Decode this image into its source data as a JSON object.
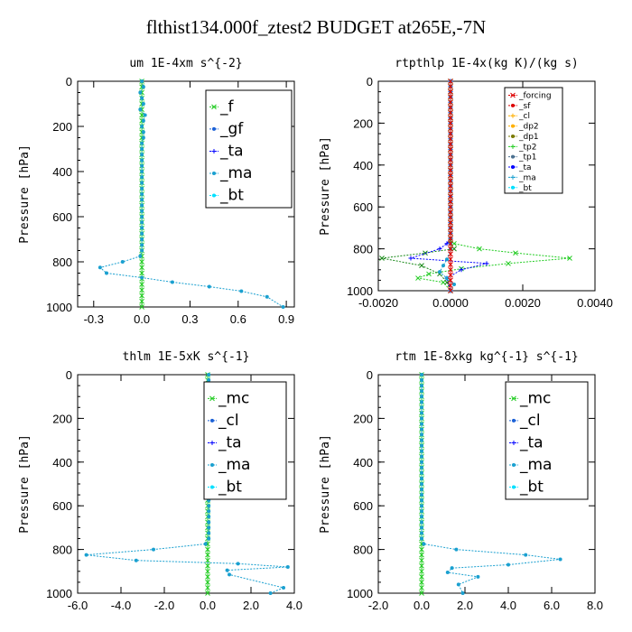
{
  "figure_title": "flthist134.000f_ztest2  BUDGET at265E,-7N",
  "colors": {
    "green": "#22cc22",
    "blue_dark": "#1a60d6",
    "blue": "#0000ff",
    "cyan_mid": "#1aa0d0",
    "cyan": "#00e0ff",
    "red": "#dd0000",
    "orange": "#ffb000",
    "olive": "#7a7a00",
    "dark_green": "#1a8a1a",
    "steel": "#4a7090"
  },
  "chart_data": [
    {
      "type": "line",
      "title": "um   1E-4xm s^{-2}",
      "ylabel": "Pressure [hPa]",
      "xlim": [
        -0.4,
        0.95
      ],
      "ylim": [
        1000,
        0
      ],
      "xticks": [
        -0.3,
        0.0,
        0.3,
        0.6,
        0.9
      ],
      "xtick_labels": [
        "-0.3",
        "0.0",
        "0.3",
        "0.6",
        "0.9"
      ],
      "yticks": [
        0,
        200,
        400,
        600,
        800,
        1000
      ],
      "ytick_labels": [
        "0",
        "200",
        "400",
        "600",
        "800",
        "1000"
      ],
      "legend_style": "big",
      "legend": [
        "_f",
        "_gf",
        "_ta",
        "_ma",
        "_bt"
      ],
      "series": [
        {
          "name": "_f",
          "color": "green",
          "marker": "x",
          "x": [
            0,
            0,
            0,
            0,
            0,
            0,
            0,
            0,
            0,
            0,
            0,
            0,
            0,
            0,
            0,
            0,
            0,
            0,
            0,
            0,
            0,
            0,
            0,
            0,
            0,
            0,
            0,
            0,
            0,
            0,
            0,
            0,
            0,
            0,
            0,
            0,
            0,
            0,
            0,
            0,
            0
          ],
          "y": [
            0,
            25,
            50,
            75,
            100,
            125,
            150,
            175,
            200,
            225,
            250,
            275,
            300,
            325,
            350,
            375,
            400,
            425,
            450,
            475,
            500,
            525,
            550,
            575,
            600,
            625,
            650,
            675,
            700,
            725,
            750,
            775,
            800,
            825,
            850,
            875,
            900,
            925,
            950,
            975,
            1000
          ]
        },
        {
          "name": "_bt",
          "color": "cyan_mid",
          "marker": "dot",
          "x": [
            0.0,
            0.01,
            -0.01,
            0.0,
            0.01,
            -0.01,
            0.02,
            0.01,
            0.0,
            0.01,
            0.01,
            0.0,
            0.0,
            0.0,
            0.0,
            0.0,
            0.0,
            0.0,
            0.0,
            0.0,
            0.0,
            0.0,
            0.0,
            0.0,
            0.0,
            0.0,
            0.0,
            0.0,
            0.0,
            0.0,
            0.0,
            -0.01,
            -0.12,
            -0.26,
            -0.22,
            0.0,
            0.19,
            0.42,
            0.62,
            0.78,
            0.88
          ],
          "y": [
            0,
            25,
            50,
            75,
            100,
            125,
            150,
            175,
            200,
            225,
            250,
            275,
            300,
            325,
            350,
            375,
            400,
            425,
            450,
            475,
            500,
            525,
            550,
            575,
            600,
            625,
            650,
            675,
            700,
            725,
            750,
            775,
            800,
            825,
            850,
            870,
            890,
            910,
            930,
            955,
            1000
          ]
        }
      ]
    },
    {
      "type": "line",
      "title": "rtpthlp   1E-4x(kg K)/(kg s)",
      "ylabel": "Pressure [hPa]",
      "xlim": [
        -0.002,
        0.004
      ],
      "ylim": [
        1000,
        0
      ],
      "xticks": [
        -0.002,
        0.0,
        0.002,
        0.004
      ],
      "xtick_labels": [
        "-0.0020",
        "0.0000",
        "0.0020",
        "0.0040"
      ],
      "yticks": [
        0,
        200,
        400,
        600,
        800,
        1000
      ],
      "ytick_labels": [
        "0",
        "200",
        "400",
        "600",
        "800",
        "1000"
      ],
      "legend_style": "small",
      "legend": [
        "_forcing",
        "_sf",
        "_cl",
        "_dp2",
        "_dp1",
        "_tp2",
        "_tp1",
        "_ta",
        "_ma",
        "_bt"
      ],
      "series": [
        {
          "name": "_tp2",
          "color": "green",
          "marker": "x",
          "x": [
            0,
            0,
            0,
            0,
            0,
            0,
            0,
            0,
            0,
            0,
            0,
            0,
            0,
            0,
            0,
            0,
            0,
            0,
            0,
            0,
            0,
            0,
            0,
            0,
            0,
            0,
            0,
            0,
            0,
            0,
            0,
            0,
            0.0001,
            0.0008,
            0.0018,
            0.0033,
            0.0016,
            0.0003,
            -0.0006,
            -0.0009,
            -0.0002,
            0.0
          ],
          "y": [
            0,
            25,
            50,
            75,
            100,
            125,
            150,
            175,
            200,
            225,
            250,
            275,
            300,
            325,
            350,
            375,
            400,
            425,
            450,
            475,
            500,
            525,
            550,
            575,
            600,
            625,
            650,
            675,
            700,
            725,
            750,
            760,
            775,
            800,
            820,
            845,
            870,
            895,
            920,
            940,
            960,
            1000
          ]
        },
        {
          "name": "_dp1",
          "color": "dark_green",
          "marker": "x",
          "x": [
            0,
            0,
            0,
            0,
            0,
            0,
            0,
            0,
            0,
            0,
            0,
            0,
            0,
            0,
            0,
            0,
            0,
            0,
            0,
            0,
            0,
            0,
            0,
            0,
            0,
            0,
            0,
            0,
            0,
            0,
            0,
            0,
            0.0001,
            -0.0007,
            -0.0019,
            -0.0008,
            -0.0003,
            -0.0001,
            0.0
          ],
          "y": [
            0,
            25,
            50,
            75,
            100,
            125,
            150,
            175,
            200,
            225,
            250,
            275,
            300,
            325,
            350,
            375,
            400,
            425,
            450,
            475,
            500,
            525,
            550,
            575,
            600,
            625,
            650,
            675,
            700,
            725,
            750,
            775,
            800,
            820,
            845,
            880,
            920,
            960,
            1000
          ]
        },
        {
          "name": "_ta",
          "color": "blue",
          "marker": "plus",
          "x": [
            0,
            0,
            0,
            0,
            0,
            0,
            0,
            0,
            0,
            0,
            0,
            0,
            0,
            0,
            0,
            0,
            0,
            0,
            0,
            0,
            0,
            0,
            0,
            0,
            0,
            0,
            0,
            0,
            0,
            0,
            0,
            -0.0001,
            -0.0003,
            -0.0011,
            0.001,
            0.0003,
            -0.0001,
            0.0
          ],
          "y": [
            0,
            25,
            50,
            75,
            100,
            125,
            150,
            175,
            200,
            225,
            250,
            275,
            300,
            325,
            350,
            375,
            400,
            425,
            450,
            475,
            500,
            525,
            550,
            575,
            600,
            625,
            650,
            675,
            700,
            725,
            750,
            775,
            800,
            845,
            870,
            900,
            940,
            1000
          ]
        },
        {
          "name": "_bt",
          "color": "cyan_mid",
          "marker": "dot",
          "x": [
            0,
            0,
            0,
            0,
            0,
            0,
            0,
            0,
            0,
            0,
            0,
            0,
            0,
            0,
            0,
            0,
            0,
            0,
            0,
            0,
            0,
            0,
            0,
            0,
            0,
            0,
            0,
            0,
            0,
            0,
            0,
            0,
            0,
            -0.0001,
            -0.0002,
            -0.0003,
            -0.0001,
            0.0001,
            0.0
          ],
          "y": [
            0,
            25,
            50,
            75,
            100,
            125,
            150,
            175,
            200,
            225,
            250,
            275,
            300,
            325,
            350,
            375,
            400,
            425,
            450,
            475,
            500,
            525,
            550,
            575,
            600,
            625,
            650,
            675,
            700,
            725,
            750,
            775,
            800,
            850,
            880,
            910,
            940,
            970,
            1000
          ]
        },
        {
          "name": "_forcing",
          "color": "red",
          "marker": "x",
          "x": [
            0,
            0,
            0,
            0,
            0,
            0,
            0,
            0,
            0,
            0,
            0,
            0,
            0,
            0,
            0,
            0,
            0,
            0,
            0,
            0,
            0,
            0,
            0,
            0,
            0,
            0,
            0,
            0,
            0,
            0,
            0,
            0,
            0,
            0,
            0,
            0,
            0,
            0,
            0,
            0,
            0
          ],
          "y": [
            0,
            25,
            50,
            75,
            100,
            125,
            150,
            175,
            200,
            225,
            250,
            275,
            300,
            325,
            350,
            375,
            400,
            425,
            450,
            475,
            500,
            525,
            550,
            575,
            600,
            625,
            650,
            675,
            700,
            725,
            750,
            775,
            800,
            825,
            850,
            875,
            900,
            925,
            950,
            975,
            1000
          ]
        }
      ]
    },
    {
      "type": "line",
      "title": "thlm   1E-5xK s^{-1}",
      "ylabel": "Pressure [hPa]",
      "xlim": [
        -6.0,
        4.0
      ],
      "ylim": [
        1000,
        0
      ],
      "xticks": [
        -6.0,
        -4.0,
        -2.0,
        0.0,
        2.0,
        4.0
      ],
      "xtick_labels": [
        "-6.0",
        "-4.0",
        "-2.0",
        "0.0",
        "2.0",
        "4.0"
      ],
      "yticks": [
        0,
        200,
        400,
        600,
        800,
        1000
      ],
      "ytick_labels": [
        "0",
        "200",
        "400",
        "600",
        "800",
        "1000"
      ],
      "legend_style": "big",
      "legend": [
        "_mc",
        "_cl",
        "_ta",
        "_ma",
        "_bt"
      ],
      "series": [
        {
          "name": "_mc",
          "color": "green",
          "marker": "x",
          "x": [
            0,
            0,
            0,
            0,
            0,
            0,
            0,
            0,
            0,
            0,
            0,
            0,
            0,
            0,
            0,
            0,
            0,
            0,
            0,
            0,
            0,
            0,
            0,
            0,
            0,
            0,
            0,
            0,
            0,
            0,
            0,
            0,
            0,
            0,
            0,
            0,
            0,
            0,
            0,
            0,
            0
          ],
          "y": [
            0,
            25,
            50,
            75,
            100,
            125,
            150,
            175,
            200,
            225,
            250,
            275,
            300,
            325,
            350,
            375,
            400,
            425,
            450,
            475,
            500,
            525,
            550,
            575,
            600,
            625,
            650,
            675,
            700,
            725,
            750,
            775,
            800,
            825,
            850,
            875,
            900,
            925,
            950,
            975,
            1000
          ]
        },
        {
          "name": "_bt",
          "color": "cyan_mid",
          "marker": "dot",
          "x": [
            0.05,
            0.05,
            0.05,
            0.05,
            0.05,
            0.05,
            0.05,
            0.05,
            0.05,
            0.05,
            0.05,
            0.05,
            0.05,
            0.05,
            0.05,
            0.05,
            0.05,
            0.05,
            0.05,
            0.05,
            0.05,
            0.05,
            0.05,
            0.05,
            0.05,
            0.05,
            0.05,
            0.05,
            0.05,
            0.05,
            0.05,
            -0.1,
            -2.5,
            -5.6,
            -3.3,
            1.4,
            3.7,
            0.9,
            1.0,
            3.5,
            2.9
          ],
          "y": [
            0,
            25,
            50,
            75,
            100,
            125,
            150,
            175,
            200,
            225,
            250,
            275,
            300,
            325,
            350,
            375,
            400,
            425,
            450,
            475,
            500,
            525,
            550,
            575,
            600,
            625,
            650,
            675,
            700,
            725,
            750,
            775,
            800,
            825,
            850,
            865,
            880,
            895,
            915,
            975,
            1000
          ]
        }
      ]
    },
    {
      "type": "line",
      "title": "rtm   1E-8xkg kg^{-1} s^{-1}",
      "ylabel": "Pressure [hPa]",
      "xlim": [
        -2.0,
        8.0
      ],
      "ylim": [
        1000,
        0
      ],
      "xticks": [
        -2.0,
        0.0,
        2.0,
        4.0,
        6.0,
        8.0
      ],
      "xtick_labels": [
        "-2.0",
        "0.0",
        "2.0",
        "4.0",
        "6.0",
        "8.0"
      ],
      "yticks": [
        0,
        200,
        400,
        600,
        800,
        1000
      ],
      "ytick_labels": [
        "0",
        "200",
        "400",
        "600",
        "800",
        "1000"
      ],
      "legend_style": "big",
      "legend": [
        "_mc",
        "_cl",
        "_ta",
        "_ma",
        "_bt"
      ],
      "series": [
        {
          "name": "_mc",
          "color": "green",
          "marker": "x",
          "x": [
            0,
            0,
            0,
            0,
            0,
            0,
            0,
            0,
            0,
            0,
            0,
            0,
            0,
            0,
            0,
            0,
            0,
            0,
            0,
            0,
            0,
            0,
            0,
            0,
            0,
            0,
            0,
            0,
            0,
            0,
            0,
            0,
            0,
            0,
            0,
            0,
            0,
            0,
            0,
            0,
            0
          ],
          "y": [
            0,
            25,
            50,
            75,
            100,
            125,
            150,
            175,
            200,
            225,
            250,
            275,
            300,
            325,
            350,
            375,
            400,
            425,
            450,
            475,
            500,
            525,
            550,
            575,
            600,
            625,
            650,
            675,
            700,
            725,
            750,
            775,
            800,
            825,
            850,
            875,
            900,
            925,
            950,
            975,
            1000
          ]
        },
        {
          "name": "_bt",
          "color": "cyan_mid",
          "marker": "dot",
          "x": [
            0,
            0,
            0,
            0,
            0,
            0,
            0,
            0,
            0,
            0,
            0,
            0,
            0,
            0,
            0,
            0,
            0,
            0,
            0,
            0,
            0,
            0,
            0,
            0,
            0,
            0,
            0,
            0,
            0,
            0,
            0,
            0.1,
            1.6,
            4.8,
            6.4,
            4.0,
            1.4,
            1.2,
            2.6,
            1.7,
            1.9
          ],
          "y": [
            0,
            25,
            50,
            75,
            100,
            125,
            150,
            175,
            200,
            225,
            250,
            275,
            300,
            325,
            350,
            375,
            400,
            425,
            450,
            475,
            500,
            525,
            550,
            575,
            600,
            625,
            650,
            675,
            700,
            725,
            750,
            775,
            800,
            825,
            845,
            870,
            885,
            905,
            925,
            960,
            1000
          ]
        }
      ]
    }
  ]
}
